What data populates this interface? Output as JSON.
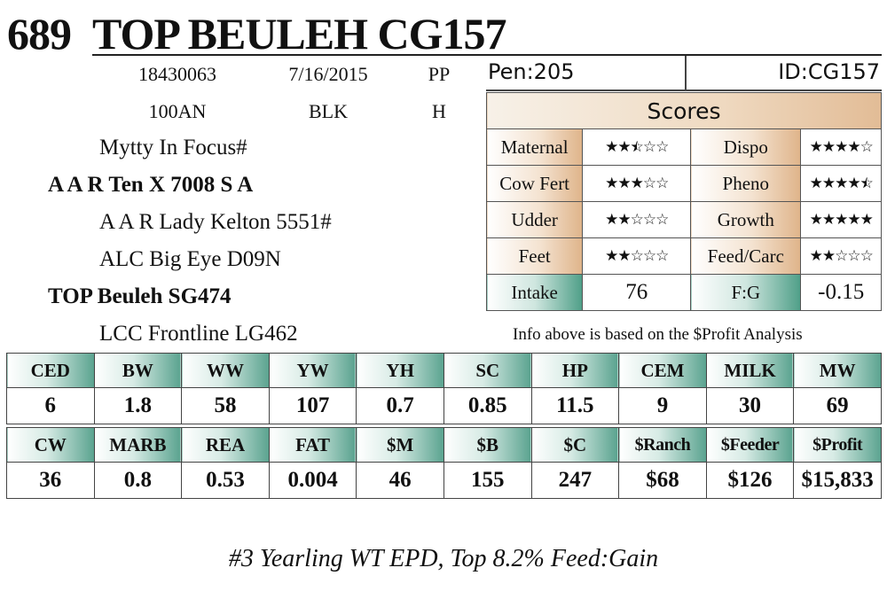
{
  "lot": "689",
  "name": "TOP BEULEH CG157",
  "info": {
    "reg": "18430063",
    "dob": "7/16/2015",
    "type": "PP",
    "tattoo": "100AN",
    "color": "BLK",
    "sex": "H"
  },
  "pedigree": [
    {
      "text": "Mytty In Focus#",
      "bold": false
    },
    {
      "text": "A A R Ten X 7008 S A",
      "bold": true
    },
    {
      "text": "A A R Lady Kelton 5551#",
      "bold": false
    },
    {
      "text": "ALC Big Eye D09N",
      "bold": false
    },
    {
      "text": "TOP Beuleh SG474",
      "bold": true
    },
    {
      "text": "LCC Frontline LG462",
      "bold": false
    }
  ],
  "pen": "Pen:205",
  "id": "ID:CG157",
  "scores": {
    "title": "Scores",
    "rows": [
      {
        "left_label": "Maternal",
        "left_stars": 2.5,
        "right_label": "Dispo",
        "right_stars": 4
      },
      {
        "left_label": "Cow Fert",
        "left_stars": 3,
        "right_label": "Pheno",
        "right_stars": 4.5
      },
      {
        "left_label": "Udder",
        "left_stars": 2,
        "right_label": "Growth",
        "right_stars": 5
      },
      {
        "left_label": "Feet",
        "left_stars": 2,
        "right_label": "Feed/Carc",
        "right_stars": 2
      }
    ],
    "intake_label": "Intake",
    "intake_value": "76",
    "fg_label": "F:G",
    "fg_value": "-0.15"
  },
  "note": "Info above is based on the $Profit Analysis",
  "epd_row1": {
    "headers": [
      "CED",
      "BW",
      "WW",
      "YW",
      "YH",
      "SC",
      "HP",
      "CEM",
      "MILK",
      "MW"
    ],
    "values": [
      "6",
      "1.8",
      "58",
      "107",
      "0.7",
      "0.85",
      "11.5",
      "9",
      "30",
      "69"
    ]
  },
  "epd_row2": {
    "headers": [
      "CW",
      "MARB",
      "REA",
      "FAT",
      "$M",
      "$B",
      "$C",
      "$Ranch",
      "$Feeder",
      "$Profit"
    ],
    "values": [
      "36",
      "0.8",
      "0.53",
      "0.004",
      "46",
      "155",
      "247",
      "$68",
      "$126",
      "$15,833"
    ]
  },
  "footer": "#3 Yearling WT EPD, Top 8.2% Feed:Gain"
}
